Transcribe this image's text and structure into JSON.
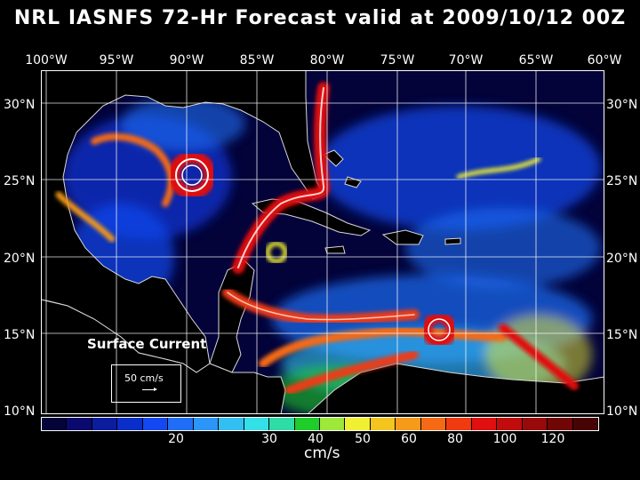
{
  "title": "NRL IASNFS  72-Hr Forecast valid at 2009/10/12 00Z",
  "map": {
    "lon_labels": [
      "100°W",
      "95°W",
      "90°W",
      "85°W",
      "80°W",
      "75°W",
      "70°W",
      "65°W",
      "60°W"
    ],
    "lat_labels": [
      "30°N",
      "25°N",
      "20°N",
      "15°N",
      "10°N"
    ],
    "field_label": "Surface Current",
    "reference_vector_label": "50 cm/s"
  },
  "colorbar": {
    "colors": [
      "#04043a",
      "#0a0a6e",
      "#0c1c9c",
      "#0a2fc8",
      "#1448f0",
      "#1f6ef5",
      "#2b96f7",
      "#33bff2",
      "#33e0e8",
      "#2fdca6",
      "#1fcd2a",
      "#9de83a",
      "#f0f032",
      "#f5c51f",
      "#f59a19",
      "#f56a14",
      "#ef3a12",
      "#e01010",
      "#c00c0c",
      "#980909",
      "#700606",
      "#480404"
    ],
    "tick_labels": [
      "20",
      "30",
      "40",
      "50",
      "60",
      "80",
      "100",
      "120"
    ],
    "unit": "cm/s"
  }
}
